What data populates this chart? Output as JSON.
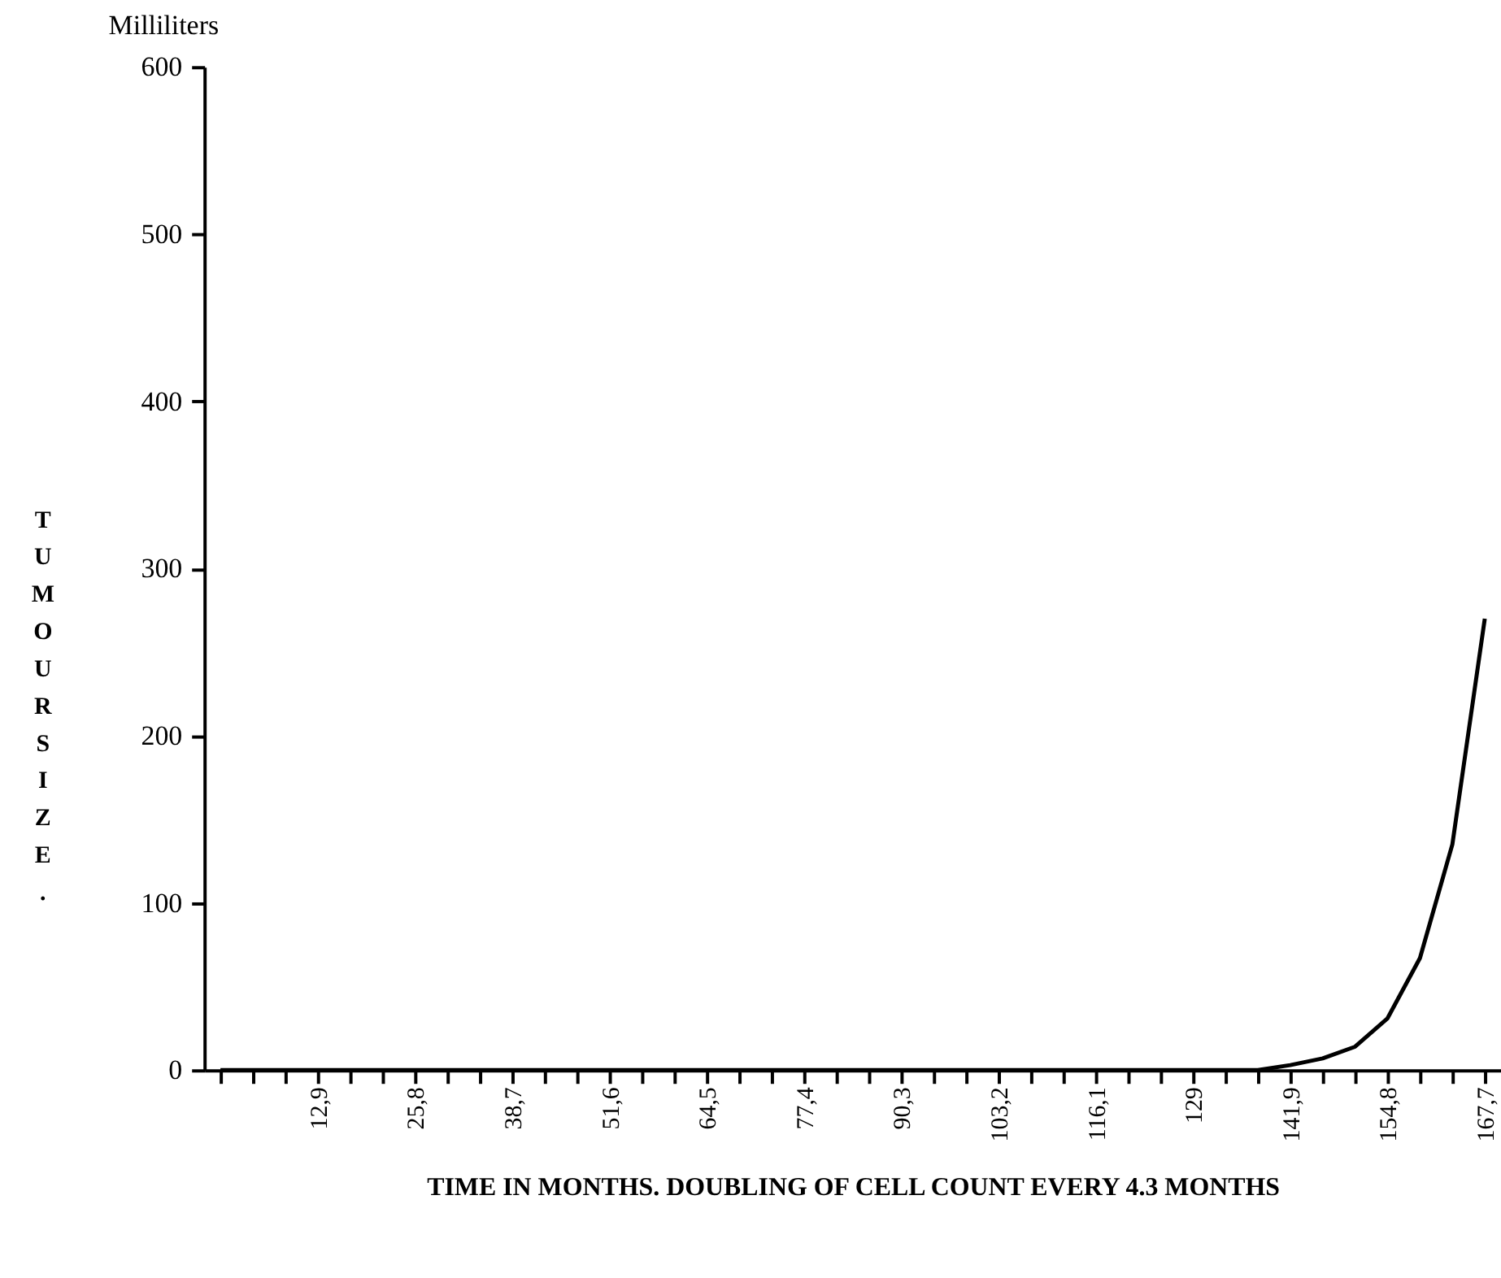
{
  "chart_data": {
    "type": "line",
    "xlabel": "TIME IN MONTHS. DOUBLING OF CELL COUNT EVERY 4.3 MONTHS",
    "ylabel": "TUMOUR SIZE.",
    "annotations": [
      "Milliliters"
    ],
    "categories": [
      null,
      null,
      null,
      "12,9",
      null,
      null,
      "25,8",
      null,
      null,
      "38,7",
      null,
      null,
      "51,6",
      null,
      null,
      "64,5",
      null,
      null,
      "77,4",
      null,
      null,
      "90,3",
      null,
      null,
      "103,2",
      null,
      null,
      "116,1",
      null,
      null,
      "129",
      null,
      null,
      "141,9",
      null,
      null,
      "154,8",
      null,
      null,
      "167,7"
    ],
    "series": [
      {
        "color": "#000000",
        "values": [
          0,
          0,
          0,
          0,
          0,
          0,
          0,
          0,
          0,
          0,
          0,
          0,
          0,
          0,
          0,
          0,
          0,
          0,
          0,
          0,
          0,
          0,
          0,
          0,
          0,
          0,
          0,
          0,
          0,
          0,
          0,
          0,
          0,
          3,
          7,
          14,
          31,
          67,
          135,
          270
        ]
      }
    ],
    "ylim": [
      0,
      600
    ],
    "yticks": [
      0,
      100,
      200,
      300,
      400,
      500,
      600
    ],
    "grid": false,
    "marker": "none",
    "line_style": "solid"
  }
}
